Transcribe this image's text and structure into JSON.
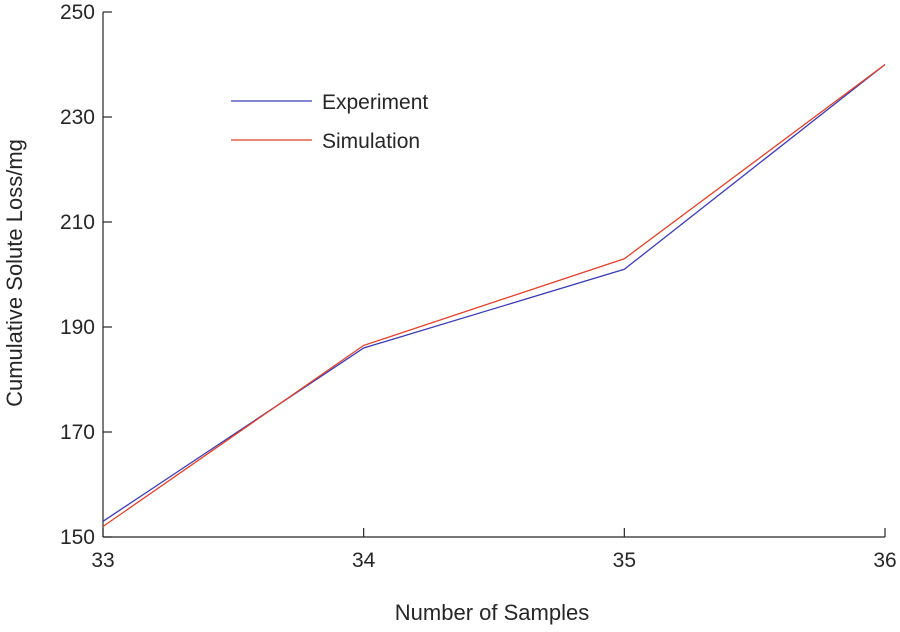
{
  "chart_data": {
    "type": "line",
    "title": "",
    "xlabel": "Number of Samples",
    "ylabel": "Cumulative Solute Loss/mg",
    "x": [
      33,
      34,
      35,
      36
    ],
    "xlim": [
      33,
      36
    ],
    "ylim": [
      150,
      250
    ],
    "xticks": [
      "33",
      "34",
      "35",
      "36"
    ],
    "yticks": [
      "150",
      "170",
      "190",
      "210",
      "230",
      "250"
    ],
    "grid": false,
    "legend_position": "top-left",
    "series": [
      {
        "name": "Experiment",
        "color": "#3b3bb3",
        "values": [
          153,
          186,
          201,
          240
        ]
      },
      {
        "name": "Simulation",
        "color": "#e0412a",
        "values": [
          152,
          186.5,
          203,
          240
        ]
      }
    ]
  }
}
